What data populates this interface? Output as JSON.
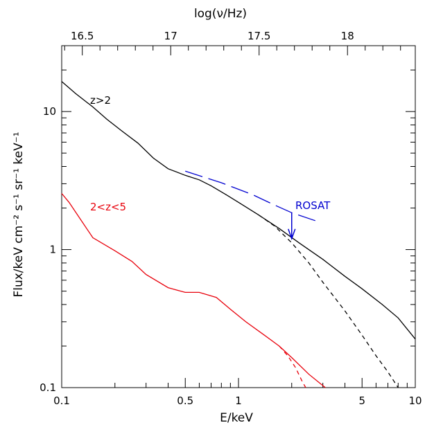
{
  "chart_data": {
    "type": "line",
    "title": "",
    "xlabel": "E/keV",
    "ylabel": "Flux/keV cm⁻² s⁻¹ sr⁻¹ keV⁻¹",
    "top_xlabel": "log(ν/Hz)",
    "xscale": "log",
    "yscale": "log",
    "xlim": [
      0.1,
      10
    ],
    "ylim": [
      0.1,
      30
    ],
    "x_ticks": [
      {
        "value": 0.1,
        "label": "0.1"
      },
      {
        "value": 0.5,
        "label": "0.5"
      },
      {
        "value": 1,
        "label": "1"
      },
      {
        "value": 5,
        "label": "5"
      },
      {
        "value": 10,
        "label": "10"
      }
    ],
    "y_ticks": [
      {
        "value": 0.1,
        "label": "0.1"
      },
      {
        "value": 1,
        "label": "1"
      },
      {
        "value": 10,
        "label": "10"
      }
    ],
    "top_ticks": [
      {
        "value": 16.5,
        "label": "16.5"
      },
      {
        "value": 17,
        "label": "17"
      },
      {
        "value": 17.5,
        "label": "17.5"
      },
      {
        "value": 18,
        "label": "18"
      }
    ],
    "series": [
      {
        "label": "z>2",
        "color": "#000000",
        "style": "solid",
        "points": [
          [
            0.1,
            16.5
          ],
          [
            0.12,
            13.5
          ],
          [
            0.15,
            10.8
          ],
          [
            0.18,
            8.8
          ],
          [
            0.22,
            7.2
          ],
          [
            0.27,
            5.9
          ],
          [
            0.33,
            4.6
          ],
          [
            0.4,
            3.85
          ],
          [
            0.5,
            3.45
          ],
          [
            0.6,
            3.2
          ],
          [
            0.7,
            2.9
          ],
          [
            0.85,
            2.5
          ],
          [
            1,
            2.2
          ],
          [
            1.3,
            1.78
          ],
          [
            1.7,
            1.42
          ],
          [
            2.2,
            1.12
          ],
          [
            3,
            0.85
          ],
          [
            4,
            0.64
          ],
          [
            5,
            0.52
          ],
          [
            6.5,
            0.4
          ],
          [
            8,
            0.32
          ],
          [
            10,
            0.225
          ]
        ]
      },
      {
        "label": "",
        "color": "#000000",
        "style": "dashed",
        "points": [
          [
            1.3,
            1.78
          ],
          [
            1.6,
            1.48
          ],
          [
            2,
            1.12
          ],
          [
            2.5,
            0.8
          ],
          [
            3,
            0.58
          ],
          [
            4,
            0.36
          ],
          [
            5,
            0.24
          ],
          [
            6,
            0.17
          ],
          [
            7,
            0.13
          ],
          [
            8,
            0.1
          ]
        ]
      },
      {
        "label": "2<z<5",
        "color": "#e8000b",
        "style": "solid",
        "points": [
          [
            0.1,
            2.55
          ],
          [
            0.11,
            2.2
          ],
          [
            0.13,
            1.6
          ],
          [
            0.15,
            1.22
          ],
          [
            0.2,
            0.98
          ],
          [
            0.25,
            0.82
          ],
          [
            0.3,
            0.66
          ],
          [
            0.4,
            0.53
          ],
          [
            0.5,
            0.49
          ],
          [
            0.6,
            0.49
          ],
          [
            0.75,
            0.45
          ],
          [
            0.9,
            0.37
          ],
          [
            1.1,
            0.3
          ],
          [
            1.4,
            0.24
          ],
          [
            1.7,
            0.2
          ],
          [
            2,
            0.165
          ],
          [
            2.5,
            0.125
          ],
          [
            3.1,
            0.1
          ]
        ]
      },
      {
        "label": "",
        "color": "#e8000b",
        "style": "dashed",
        "points": [
          [
            1.7,
            0.2
          ],
          [
            1.9,
            0.17
          ],
          [
            2.1,
            0.14
          ],
          [
            2.3,
            0.11
          ],
          [
            2.4,
            0.1
          ]
        ]
      },
      {
        "label": "ROSAT",
        "color": "#0000d0",
        "style": "long-dash",
        "points": [
          [
            0.5,
            3.7
          ],
          [
            0.8,
            3.05
          ],
          [
            1.2,
            2.5
          ],
          [
            1.6,
            2.1
          ],
          [
            2,
            1.85
          ],
          [
            2.8,
            1.6
          ]
        ]
      }
    ],
    "annotations": [
      {
        "text": "z>2",
        "color": "#000000"
      },
      {
        "text": "2<z<5",
        "color": "#e8000b"
      },
      {
        "text": "ROSAT",
        "color": "#0000d0"
      }
    ],
    "arrow": {
      "color": "#0000d0",
      "x": 2,
      "y_from": 1.85,
      "y_to": 1.2
    }
  }
}
